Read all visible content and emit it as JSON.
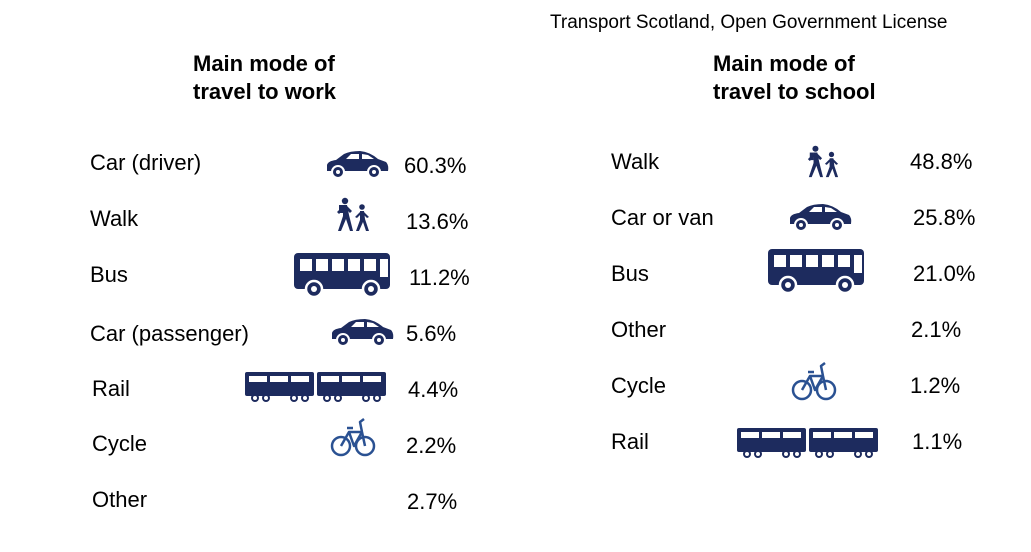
{
  "credit": "Transport Scotland, Open Government License",
  "colors": {
    "icon": "#1d2b5e",
    "icon_light": "#2a5192",
    "text": "#000000",
    "background": "#ffffff"
  },
  "chart_data": [
    {
      "type": "table",
      "title": "Main mode of travel to work",
      "title_lines": [
        "Main mode of",
        "travel to work"
      ],
      "rows": [
        {
          "label": "Car (driver)",
          "value": 60.3,
          "display": "60.3%",
          "icon": "car-icon"
        },
        {
          "label": "Walk",
          "value": 13.6,
          "display": "13.6%",
          "icon": "walkers-icon"
        },
        {
          "label": "Bus",
          "value": 11.2,
          "display": "11.2%",
          "icon": "bus-icon"
        },
        {
          "label": "Car (passenger)",
          "value": 5.6,
          "display": "5.6%",
          "icon": "car-icon"
        },
        {
          "label": "Rail",
          "value": 4.4,
          "display": "4.4%",
          "icon": "train-icon"
        },
        {
          "label": "Cycle",
          "value": 2.2,
          "display": "2.2%",
          "icon": "bicycle-icon"
        },
        {
          "label": "Other",
          "value": 2.7,
          "display": "2.7%",
          "icon": ""
        }
      ]
    },
    {
      "type": "table",
      "title": "Main mode of travel to school",
      "title_lines": [
        "Main mode of",
        "travel to school"
      ],
      "rows": [
        {
          "label": "Walk",
          "value": 48.8,
          "display": "48.8%",
          "icon": "walkers-icon"
        },
        {
          "label": "Car or van",
          "value": 25.8,
          "display": "25.8%",
          "icon": "car-icon"
        },
        {
          "label": "Bus",
          "value": 21.0,
          "display": "21.0%",
          "icon": "bus-icon"
        },
        {
          "label": "Other",
          "value": 2.1,
          "display": "2.1%",
          "icon": ""
        },
        {
          "label": "Cycle",
          "value": 1.2,
          "display": "1.2%",
          "icon": "bicycle-icon"
        },
        {
          "label": "Rail",
          "value": 1.1,
          "display": "1.1%",
          "icon": "train-icon"
        }
      ]
    }
  ]
}
